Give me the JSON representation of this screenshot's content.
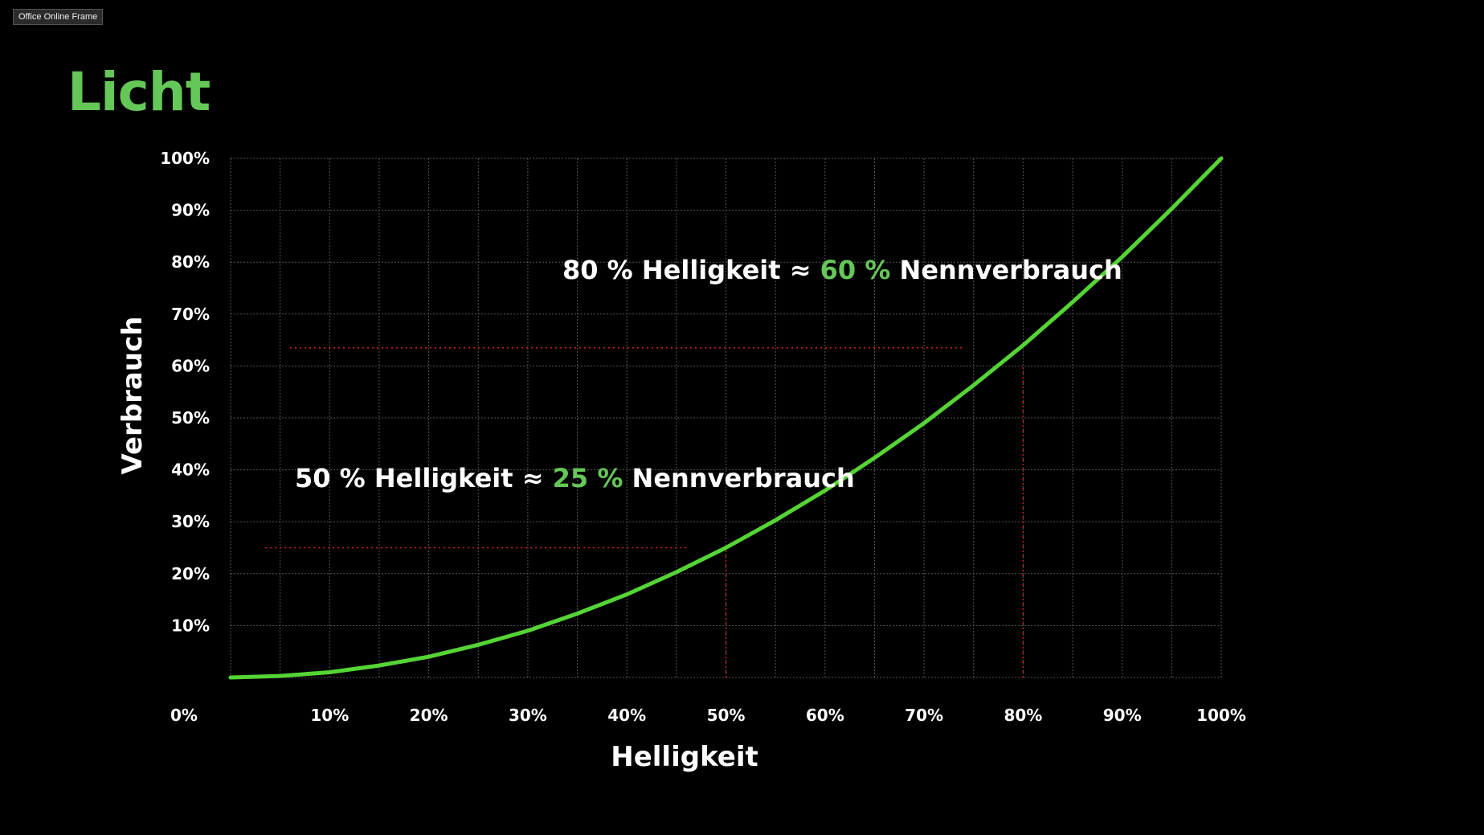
{
  "window": {
    "frame_label": "Office Online Frame"
  },
  "slide": {
    "title": "Licht"
  },
  "chart_data": {
    "type": "line",
    "xlabel": "Helligkeit",
    "ylabel": "Verbrauch",
    "xlim": [
      0,
      100
    ],
    "ylim": [
      0,
      100
    ],
    "x_ticks": [
      "0%",
      "10%",
      "20%",
      "30%",
      "40%",
      "50%",
      "60%",
      "70%",
      "80%",
      "90%",
      "100%"
    ],
    "y_ticks": [
      "10%",
      "20%",
      "30%",
      "40%",
      "50%",
      "60%",
      "70%",
      "80%",
      "90%",
      "100%"
    ],
    "grid": true,
    "series": [
      {
        "color": "#55d535",
        "x": [
          0,
          5,
          10,
          15,
          20,
          25,
          30,
          35,
          40,
          45,
          50,
          55,
          60,
          65,
          70,
          75,
          80,
          85,
          90,
          95,
          100
        ],
        "y": [
          0,
          0.3,
          1,
          2.3,
          4,
          6.3,
          9,
          12.3,
          16,
          20.3,
          25,
          30.3,
          36,
          42.3,
          49,
          56.3,
          64,
          72.3,
          81,
          90.3,
          100
        ]
      }
    ],
    "reference_lines": [
      {
        "orientation": "horizontal",
        "y": 25,
        "x_from": 3.5,
        "x_to": 46,
        "color": "#d02020"
      },
      {
        "orientation": "vertical",
        "x": 50,
        "y_from": 0,
        "y_to": 25,
        "color": "#d02020"
      },
      {
        "orientation": "horizontal",
        "y": 63.5,
        "x_from": 6,
        "x_to": 74,
        "color": "#d02020"
      },
      {
        "orientation": "vertical",
        "x": 80,
        "y_from": 0,
        "y_to": 60,
        "color": "#d02020"
      }
    ],
    "annotations": [
      {
        "pre": "80 % Helligkeit ≈ ",
        "highlight": "60 %",
        "post": " Nennverbrauch"
      },
      {
        "pre": "50 % Helligkeit ≈ ",
        "highlight": "25 %",
        "post": " Nennverbrauch"
      }
    ],
    "colors": {
      "accent": "#65c757",
      "background": "#000000"
    }
  }
}
